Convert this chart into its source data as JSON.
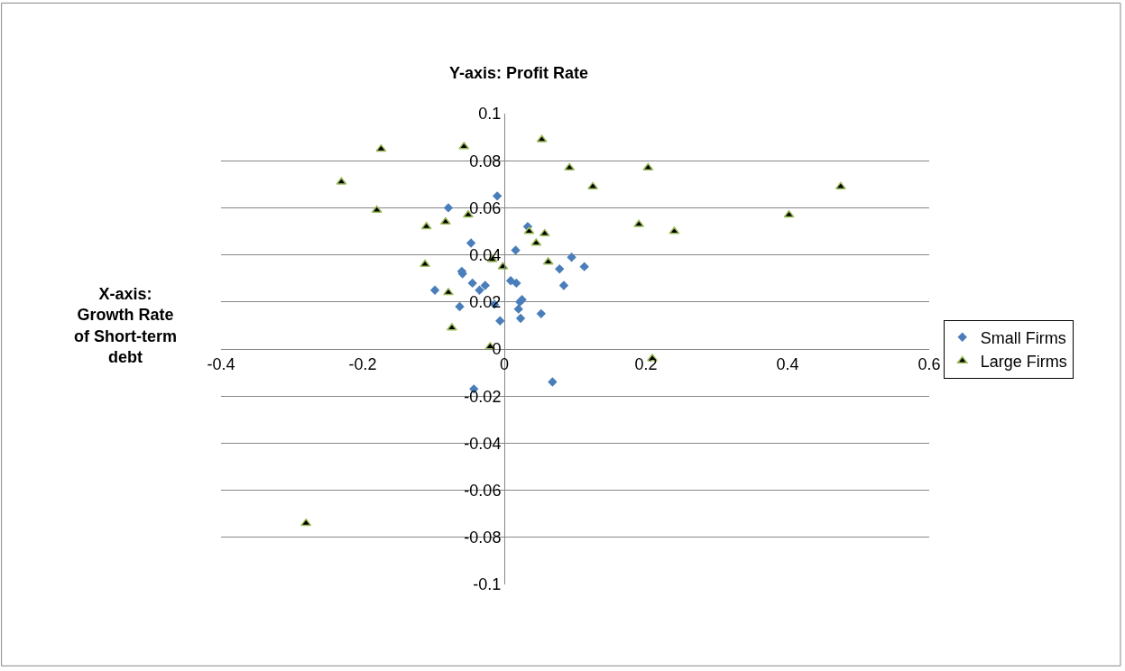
{
  "chart_data": {
    "type": "scatter",
    "title": "Y-axis: Profit Rate",
    "ylabel": "X-axis: Growth Rate of Short-term debt",
    "xlim": [
      -0.4,
      0.6
    ],
    "xticks": [
      -0.4,
      -0.2,
      0,
      0.2,
      0.4,
      0.6
    ],
    "ylim": [
      -0.1,
      0.1
    ],
    "yticks": [
      -0.1,
      -0.08,
      -0.06,
      -0.04,
      -0.02,
      0,
      0.02,
      0.04,
      0.06,
      0.08,
      0.1
    ],
    "grid": "y",
    "legend": "right",
    "series": [
      {
        "name": "Small Firms",
        "color": "#4a7ebb",
        "marker": "diamond",
        "x": [
          -0.01,
          -0.079,
          0.033,
          -0.047,
          0.016,
          0.095,
          -0.06,
          -0.059,
          0.078,
          0.113,
          0.009,
          0.017,
          -0.045,
          -0.027,
          -0.035,
          -0.098,
          0.084,
          0.025,
          0.022,
          -0.014,
          -0.063,
          0.02,
          0.052,
          -0.006,
          0.023,
          0.068,
          -0.043
        ],
        "values": [
          0.065,
          0.06,
          0.052,
          0.045,
          0.042,
          0.039,
          0.033,
          0.032,
          0.034,
          0.035,
          0.029,
          0.028,
          0.028,
          0.027,
          0.025,
          0.025,
          0.027,
          0.021,
          0.02,
          0.019,
          0.018,
          0.017,
          0.015,
          0.012,
          0.013,
          -0.014,
          -0.017
        ]
      },
      {
        "name": "Large Firms",
        "color": "#000000",
        "marker": "triangle",
        "x": [
          -0.057,
          0.053,
          0.092,
          0.125,
          -0.051,
          -0.083,
          -0.11,
          0.035,
          0.057,
          0.045,
          -0.112,
          -0.017,
          -0.002,
          0.062,
          -0.079,
          -0.074,
          -0.02,
          -0.174,
          -0.23,
          -0.18,
          0.203,
          0.475,
          0.402,
          0.19,
          0.24,
          0.209,
          -0.28
        ],
        "values": [
          0.086,
          0.089,
          0.077,
          0.069,
          0.057,
          0.054,
          0.052,
          0.05,
          0.049,
          0.045,
          0.036,
          0.038,
          0.035,
          0.037,
          0.024,
          0.009,
          0.001,
          0.085,
          0.071,
          0.059,
          0.077,
          0.069,
          0.057,
          0.053,
          0.05,
          -0.004,
          -0.074
        ]
      }
    ]
  }
}
